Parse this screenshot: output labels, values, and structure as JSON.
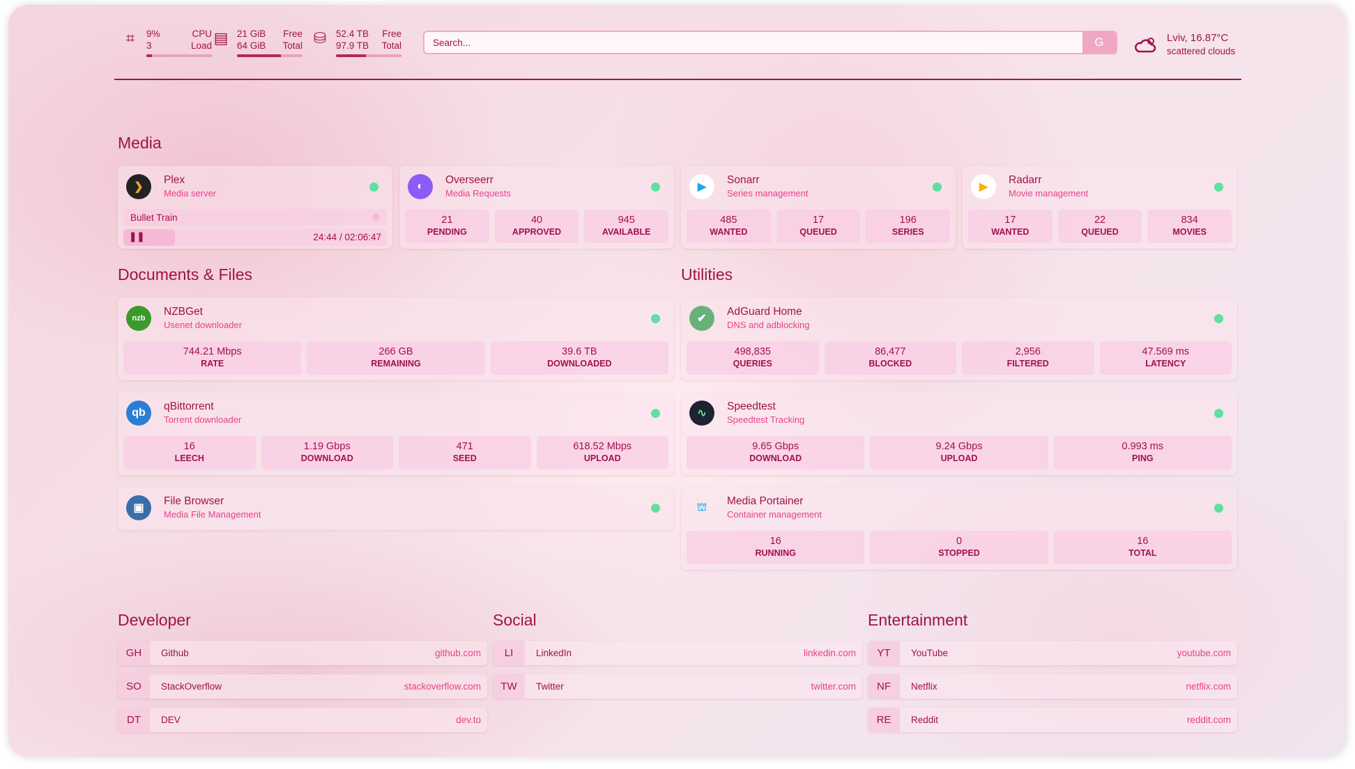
{
  "resources": {
    "cpu": {
      "icon": "cpu-icon",
      "v1": "9%",
      "v2": "3",
      "l1": "CPU",
      "l2": "Load",
      "usage": 0.09
    },
    "memory": {
      "icon": "memory-icon",
      "v1": "21 GiB",
      "v2": "64 GiB",
      "l1": "Free",
      "l2": "Total",
      "usage": 0.67
    },
    "disk": {
      "icon": "disk-icon",
      "v1": "52.4 TB",
      "v2": "97.9 TB",
      "l1": "Free",
      "l2": "Total",
      "usage": 0.46
    }
  },
  "search": {
    "placeholder": "Search...",
    "provider": "G"
  },
  "weather": {
    "icon": "cloud-icon",
    "location": "Lviv, 16.87°C",
    "condition": "scattered clouds"
  },
  "colors": {
    "accent": "#a0124a",
    "subtitle": "#e8418a",
    "status_ok": "#5ee0a0"
  },
  "sections": {
    "media": "Media",
    "docs": "Documents & Files",
    "utilities": "Utilities",
    "developer": "Developer",
    "social": "Social",
    "entertainment": "Entertainment"
  },
  "cards": [
    {
      "id": "plex",
      "name": "Plex",
      "desc": "Media server",
      "icon": "plex-icon",
      "nowplaying": {
        "title": "Bullet Train",
        "time": "24:44 / 02:06:47",
        "progress": 0.195
      }
    },
    {
      "id": "overseerr",
      "name": "Overseerr",
      "desc": "Media Requests",
      "icon": "overseerr-icon",
      "stats": [
        {
          "value": "21",
          "label": "PENDING"
        },
        {
          "value": "40",
          "label": "APPROVED"
        },
        {
          "value": "945",
          "label": "AVAILABLE"
        }
      ]
    },
    {
      "id": "sonarr",
      "name": "Sonarr",
      "desc": "Series management",
      "icon": "sonarr-icon",
      "stats": [
        {
          "value": "485",
          "label": "WANTED"
        },
        {
          "value": "17",
          "label": "QUEUED"
        },
        {
          "value": "196",
          "label": "SERIES"
        }
      ]
    },
    {
      "id": "radarr",
      "name": "Radarr",
      "desc": "Movie management",
      "icon": "radarr-icon",
      "stats": [
        {
          "value": "17",
          "label": "WANTED"
        },
        {
          "value": "22",
          "label": "QUEUED"
        },
        {
          "value": "834",
          "label": "MOVIES"
        }
      ]
    },
    {
      "id": "nzbget",
      "name": "NZBGet",
      "desc": "Usenet downloader",
      "icon": "nzbget-icon",
      "stats": [
        {
          "value": "744.21 Mbps",
          "label": "RATE"
        },
        {
          "value": "266 GB",
          "label": "REMAINING"
        },
        {
          "value": "39.6 TB",
          "label": "DOWNLOADED"
        }
      ]
    },
    {
      "id": "qbittorrent",
      "name": "qBittorrent",
      "desc": "Torrent downloader",
      "icon": "qbittorrent-icon",
      "stats": [
        {
          "value": "16",
          "label": "LEECH"
        },
        {
          "value": "1.19 Gbps",
          "label": "DOWNLOAD"
        },
        {
          "value": "471",
          "label": "SEED"
        },
        {
          "value": "618.52 Mbps",
          "label": "UPLOAD"
        }
      ]
    },
    {
      "id": "filebrowser",
      "name": "File Browser",
      "desc": "Media File Management",
      "icon": "filebrowser-icon"
    },
    {
      "id": "adguard",
      "name": "AdGuard Home",
      "desc": "DNS and adblocking",
      "icon": "adguard-shield-icon",
      "stats": [
        {
          "value": "498,835",
          "label": "QUERIES"
        },
        {
          "value": "86,477",
          "label": "BLOCKED"
        },
        {
          "value": "2,956",
          "label": "FILTERED"
        },
        {
          "value": "47.569 ms",
          "label": "LATENCY"
        }
      ]
    },
    {
      "id": "speedtest",
      "name": "Speedtest",
      "desc": "Speedtest Tracking",
      "icon": "speedtest-icon",
      "nodot": true,
      "stats": [
        {
          "value": "9.65 Gbps",
          "label": "DOWNLOAD"
        },
        {
          "value": "9.24 Gbps",
          "label": "UPLOAD"
        },
        {
          "value": "0.993 ms",
          "label": "PING"
        }
      ]
    },
    {
      "id": "portainer",
      "name": "Media Portainer",
      "desc": "Container management",
      "icon": "portainer-icon",
      "stats": [
        {
          "value": "16",
          "label": "RUNNING"
        },
        {
          "value": "0",
          "label": "STOPPED"
        },
        {
          "value": "16",
          "label": "TOTAL"
        }
      ]
    }
  ],
  "links": {
    "developer": [
      {
        "abbr": "GH",
        "name": "Github",
        "url": "github.com"
      },
      {
        "abbr": "SO",
        "name": "StackOverflow",
        "url": "stackoverflow.com"
      },
      {
        "abbr": "DT",
        "name": "DEV",
        "url": "dev.to"
      }
    ],
    "social": [
      {
        "abbr": "LI",
        "name": "LinkedIn",
        "url": "linkedin.com"
      },
      {
        "abbr": "TW",
        "name": "Twitter",
        "url": "twitter.com"
      }
    ],
    "entertainment": [
      {
        "abbr": "YT",
        "name": "YouTube",
        "url": "youtube.com"
      },
      {
        "abbr": "NF",
        "name": "Netflix",
        "url": "netflix.com"
      },
      {
        "abbr": "RE",
        "name": "Reddit",
        "url": "reddit.com"
      }
    ]
  }
}
